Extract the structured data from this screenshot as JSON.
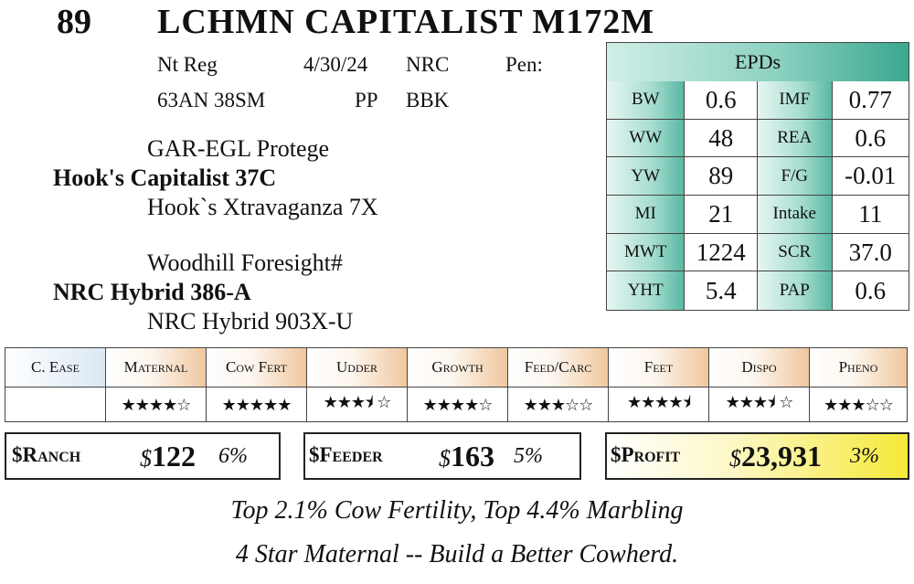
{
  "header": {
    "lot": "89",
    "name": "LCHMN CAPITALIST M172M"
  },
  "info": {
    "reg": "Nt Reg",
    "date": "4/30/24",
    "breeder": "NRC",
    "pen": "Pen:",
    "tattoo": "63AN 38SM",
    "polled": "PP",
    "color": "BBK"
  },
  "pedigree": {
    "sire_sire": "GAR-EGL Protege",
    "sire": "Hook's Capitalist 37C",
    "sire_dam": "Hook`s Xtravaganza 7X",
    "dam_sire": "Woodhill Foresight#",
    "dam": "NRC Hybrid 386-A",
    "dam_dam": "NRC Hybrid 903X-U"
  },
  "epd": {
    "title": "EPDs",
    "rows": [
      {
        "l1": "BW",
        "v1": "0.6",
        "l2": "IMF",
        "v2": "0.77"
      },
      {
        "l1": "WW",
        "v1": "48",
        "l2": "REA",
        "v2": "0.6"
      },
      {
        "l1": "YW",
        "v1": "89",
        "l2": "F/G",
        "v2": "-0.01"
      },
      {
        "l1": "MI",
        "v1": "21",
        "l2": "Intake",
        "v2": "11"
      },
      {
        "l1": "MWT",
        "v1": "1224",
        "l2": "SCR",
        "v2": "37.0"
      },
      {
        "l1": "YHT",
        "v1": "5.4",
        "l2": "PAP",
        "v2": "0.6"
      }
    ]
  },
  "ratings": {
    "headers": [
      "C. Ease",
      "Maternal",
      "Cow Fert",
      "Udder",
      "Growth",
      "Feed/Carc",
      "Feet",
      "Dispo",
      "Pheno"
    ],
    "stars": [
      "",
      "★★★★☆",
      "★★★★★",
      "★★★⯨ ☆",
      "★★★★☆",
      "★★★☆☆",
      "★★★★⯨",
      "★★★⯨ ☆",
      "★★★☆☆"
    ],
    "star_values": [
      null,
      4,
      5,
      3.5,
      4,
      3,
      4.5,
      3.5,
      3
    ]
  },
  "indexes": {
    "ranch": {
      "label": "$Ranch",
      "dollar": "$",
      "value": "122",
      "pct": "6%"
    },
    "feeder": {
      "label": "$Feeder",
      "dollar": "$",
      "value": "163",
      "pct": "5%"
    },
    "profit": {
      "label": "$Profit",
      "dollar": "$",
      "value": "23,931",
      "pct": "3%"
    }
  },
  "footer": {
    "line1": "Top 2.1% Cow Fertility, Top 4.4% Marbling",
    "line2": "4 Star Maternal -- Build a Better Cowherd."
  },
  "colors": {
    "epd_teal": "#3aa88f",
    "rating_header": "#f0c79e",
    "profit_yellow": "#f5e93a"
  }
}
